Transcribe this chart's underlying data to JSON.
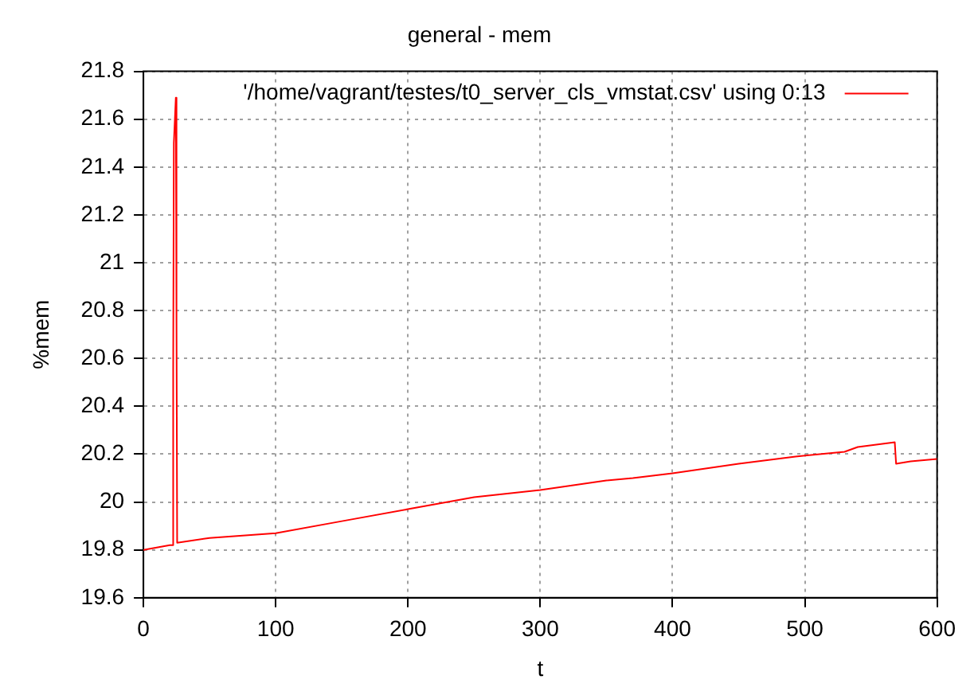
{
  "chart_data": {
    "type": "line",
    "title": "general - mem",
    "xlabel": "t",
    "ylabel": "%mem",
    "legend": "top right",
    "grid": true,
    "line_style": "solid",
    "marker": "none",
    "xlim": [
      0,
      600
    ],
    "xticks": [
      0,
      100,
      200,
      300,
      400,
      500,
      600
    ],
    "ylim": [
      19.6,
      21.8
    ],
    "yticks": [
      19.6,
      19.8,
      20,
      20.2,
      20.4,
      20.6,
      20.8,
      21,
      21.2,
      21.4,
      21.6,
      21.8
    ],
    "series": [
      {
        "name": "'/home/vagrant/testes/t0_server_cls_vmstat.csv' using 0:13",
        "color": "#ff0000",
        "x": [
          0,
          10,
          20,
          22,
          22.5,
          23,
          24.5,
          25,
          25.5,
          50,
          100,
          150,
          200,
          250,
          300,
          350,
          370,
          400,
          450,
          493,
          530,
          540,
          568,
          569,
          580,
          600
        ],
        "values": [
          19.8,
          19.81,
          19.82,
          19.82,
          20.55,
          21.5,
          21.69,
          20.75,
          19.83,
          19.85,
          19.87,
          19.92,
          19.97,
          20.02,
          20.05,
          20.09,
          20.1,
          20.12,
          20.16,
          20.19,
          20.21,
          20.23,
          20.25,
          20.16,
          20.17,
          20.18
        ]
      }
    ]
  }
}
